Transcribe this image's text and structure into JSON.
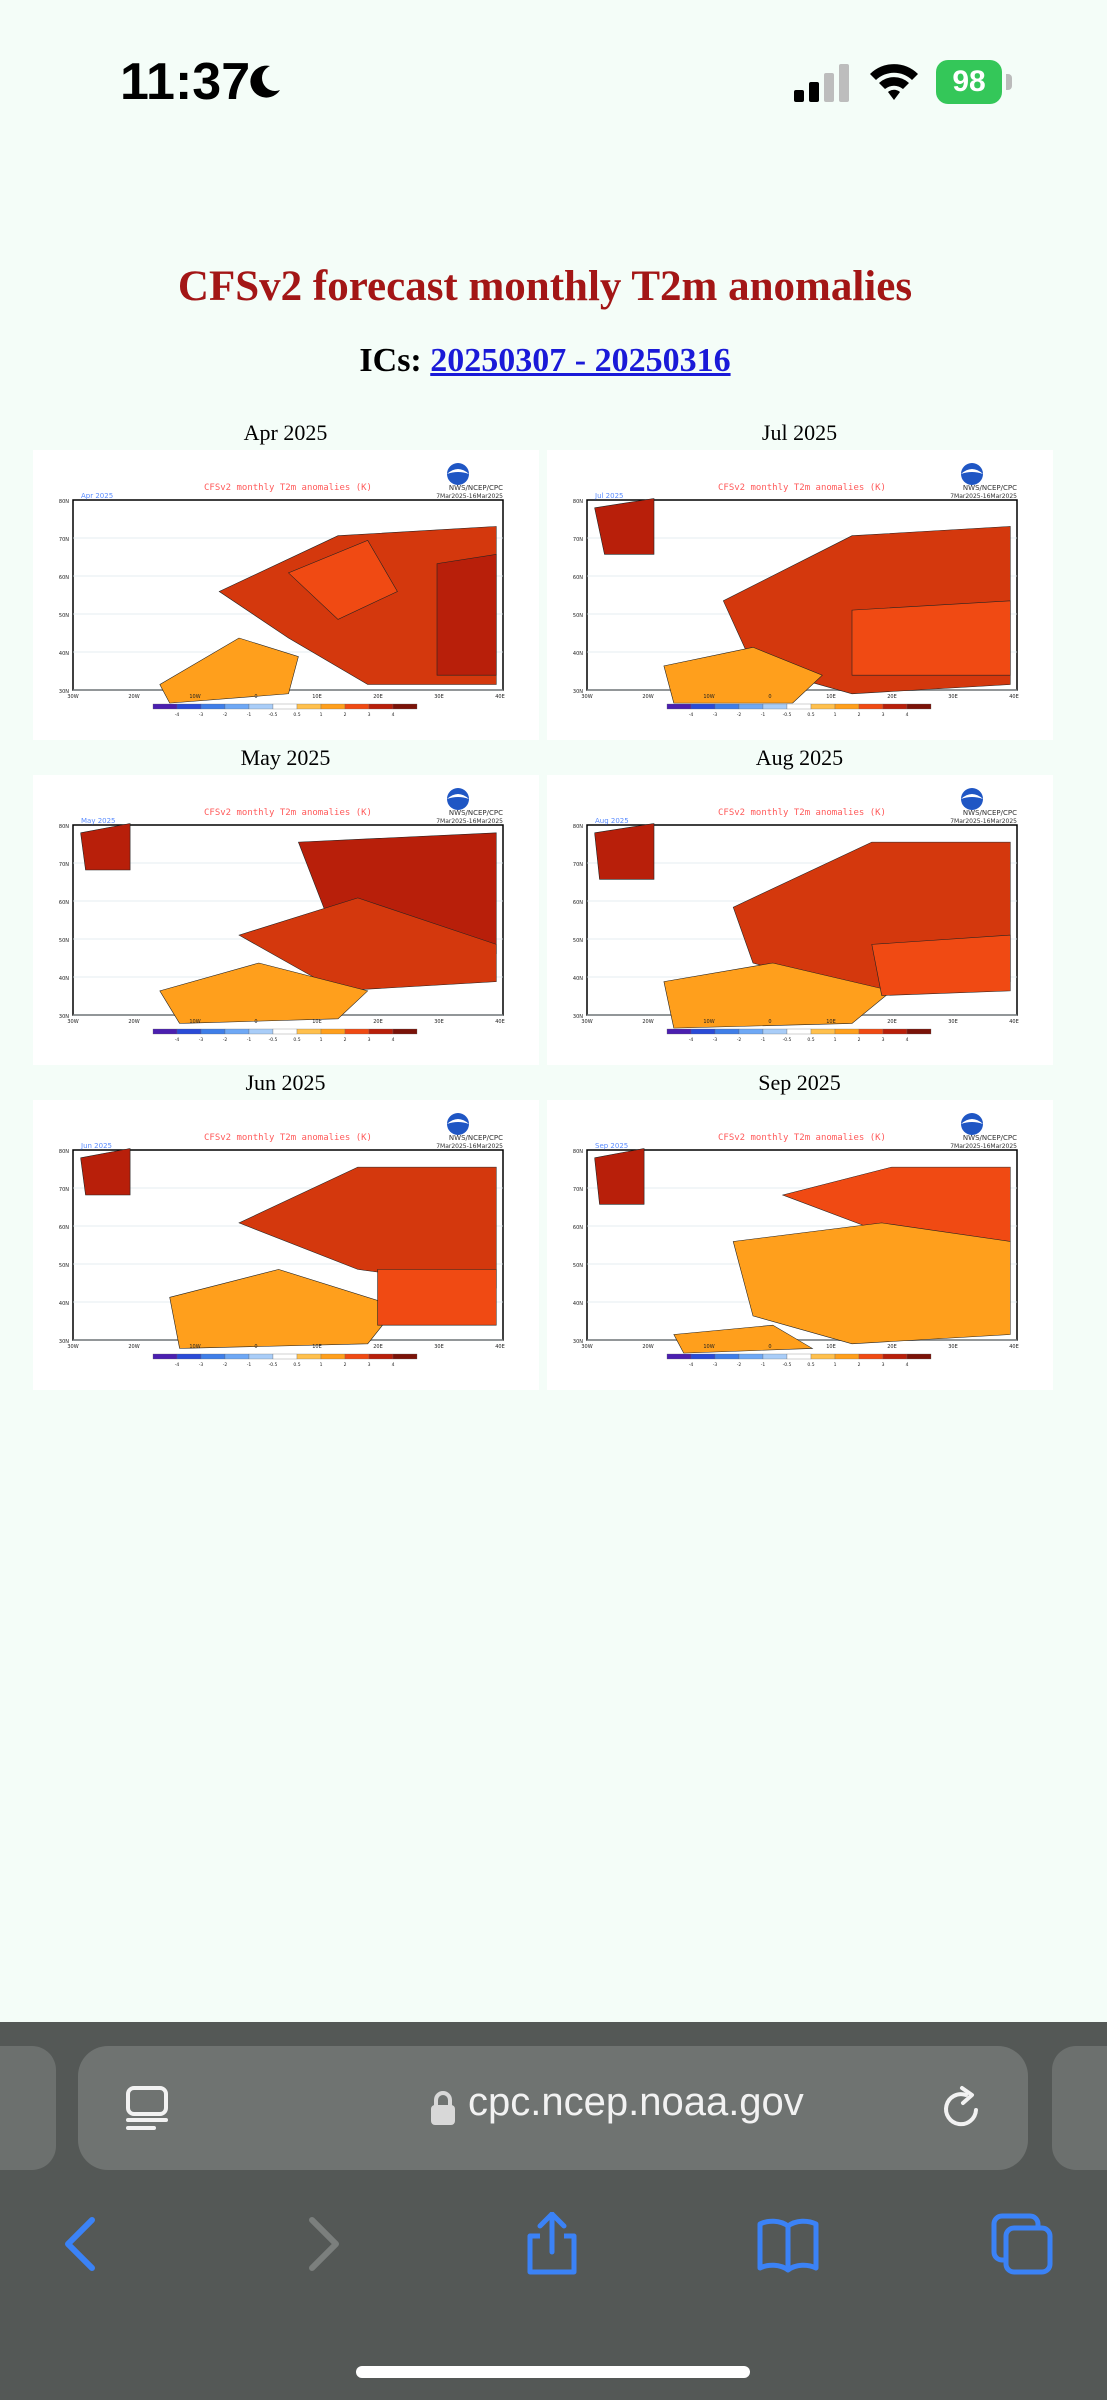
{
  "status_bar": {
    "time": "11:37",
    "battery": "98"
  },
  "page": {
    "title": "CFSv2 forecast monthly T2m anomalies",
    "ics_label": "ICs:",
    "ics_link": "20250307 - 20250316"
  },
  "panels": [
    {
      "label": "Apr 2025",
      "map_month": "Apr 2025"
    },
    {
      "label": "Jul 2025",
      "map_month": "Jul 2025"
    },
    {
      "label": "May 2025",
      "map_month": "May 2025"
    },
    {
      "label": "Aug 2025",
      "map_month": "Aug 2025"
    },
    {
      "label": "Jun 2025",
      "map_month": "Jun 2025"
    },
    {
      "label": "Sep 2025",
      "map_month": "Sep 2025"
    }
  ],
  "map_common": {
    "title": "CFSv2 monthly T2m anomalies (K)",
    "agency": "NWS/NCEP/CPC",
    "ic_note": "7Mar2025-16Mar2025",
    "lat_labels": [
      "80N",
      "70N",
      "60N",
      "50N",
      "40N",
      "30N"
    ],
    "lon_labels": [
      "30W",
      "20W",
      "10W",
      "0",
      "10E",
      "20E",
      "30E",
      "40E"
    ],
    "colorbar_labels": [
      "-4",
      "-3",
      "-2",
      "-1",
      "-0.5",
      "0.5",
      "1",
      "2",
      "3",
      "4"
    ]
  },
  "browser": {
    "url": "cpc.ncep.noaa.gov"
  },
  "icons": {
    "moon": "moon-icon",
    "signal": "signal-icon",
    "wifi": "wifi-icon",
    "lock": "lock-icon",
    "reader": "reader-icon",
    "reload": "reload-icon",
    "back": "back-icon",
    "forward": "forward-icon",
    "share": "share-icon",
    "bookmarks": "bookmarks-icon",
    "tabs": "tabs-icon"
  }
}
